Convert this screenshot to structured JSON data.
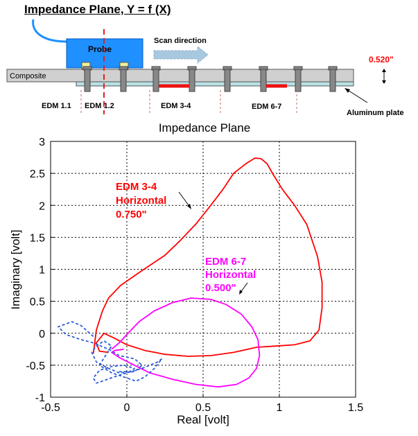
{
  "header": {
    "title": "Impedance Plane, Y = f (X)"
  },
  "diagram": {
    "probe_label": "Probe",
    "scan_label": "Scan direction",
    "composite_label": "Composite",
    "thickness_label": "0.520\"",
    "plate_label": "Aluminum plate",
    "edm_labels": [
      "EDM 1.1",
      "EDM 1.2",
      "EDM 3-4",
      "EDM 6-7"
    ],
    "colors": {
      "probe": "#1e90ff",
      "defect": "#ee1111",
      "scan_arrow": "#a8c8e0",
      "thickness": "#ff0000"
    }
  },
  "chart_data": {
    "type": "line",
    "title": "Impedance Plane",
    "xlabel": "Real [volt]",
    "ylabel": "Imaginary [volt]",
    "xlim": [
      -0.5,
      1.5
    ],
    "ylim": [
      -1,
      3
    ],
    "xticks": [
      "-0.5",
      "0",
      "0.5",
      "1",
      "1.5"
    ],
    "yticks": [
      "-1",
      "-0.5",
      "0",
      "0.5",
      "1",
      "1.5",
      "2",
      "2.5",
      "3"
    ],
    "grid": true,
    "series": [
      {
        "color": "#ff0000",
        "dash": false,
        "x": [
          -0.22,
          -0.2,
          -0.16,
          -0.12,
          -0.04,
          0.1,
          0.25,
          0.35,
          0.45,
          0.55,
          0.63,
          0.7,
          0.78,
          0.84,
          0.88,
          0.92,
          0.96,
          1.02,
          1.1,
          1.18,
          1.25,
          1.28,
          1.28,
          1.26,
          1.2,
          1.1,
          0.98,
          0.85,
          0.7,
          0.55,
          0.4,
          0.25,
          0.12,
          0.0,
          -0.08,
          -0.15,
          -0.2,
          -0.18,
          -0.12
        ],
        "y": [
          -0.32,
          0.05,
          0.35,
          0.55,
          0.75,
          0.98,
          1.22,
          1.45,
          1.7,
          2.0,
          2.25,
          2.5,
          2.65,
          2.74,
          2.73,
          2.65,
          2.48,
          2.25,
          2.0,
          1.7,
          1.2,
          0.8,
          0.4,
          0.05,
          -0.12,
          -0.18,
          -0.2,
          -0.22,
          -0.3,
          -0.35,
          -0.36,
          -0.33,
          -0.27,
          -0.18,
          -0.08,
          0.0,
          -0.15,
          -0.28,
          -0.3
        ]
      },
      {
        "color": "#ff00ff",
        "dash": false,
        "x": [
          -0.1,
          -0.05,
          0.0,
          0.08,
          0.18,
          0.3,
          0.42,
          0.55,
          0.65,
          0.75,
          0.82,
          0.86,
          0.87,
          0.85,
          0.8,
          0.72,
          0.6,
          0.45,
          0.3,
          0.15,
          0.05,
          -0.05,
          -0.1,
          -0.08,
          -0.02
        ],
        "y": [
          -0.25,
          -0.15,
          -0.02,
          0.18,
          0.35,
          0.48,
          0.55,
          0.53,
          0.45,
          0.3,
          0.1,
          -0.1,
          -0.35,
          -0.55,
          -0.7,
          -0.8,
          -0.84,
          -0.8,
          -0.72,
          -0.62,
          -0.5,
          -0.38,
          -0.3,
          -0.27,
          -0.25
        ]
      },
      {
        "color": "#2a5cd8",
        "dash": true,
        "x": [
          -0.22,
          -0.3,
          -0.36,
          -0.45,
          -0.4,
          -0.3,
          -0.22,
          -0.12,
          -0.05,
          0.05,
          0.1,
          0.05,
          -0.05,
          -0.12,
          -0.2,
          -0.23,
          -0.2,
          -0.15,
          -0.1,
          -0.14,
          -0.18,
          -0.1,
          0.0,
          0.06,
          0.12,
          0.18,
          0.23,
          0.2,
          0.1,
          0.0,
          -0.08,
          -0.15,
          -0.2,
          -0.22,
          -0.18,
          -0.1,
          -0.02,
          0.05,
          0.02,
          -0.05
        ],
        "y": [
          -0.05,
          0.12,
          0.18,
          0.1,
          -0.02,
          -0.1,
          -0.15,
          -0.25,
          -0.35,
          -0.4,
          -0.5,
          -0.6,
          -0.62,
          -0.55,
          -0.45,
          -0.3,
          -0.2,
          -0.12,
          -0.2,
          -0.35,
          -0.5,
          -0.62,
          -0.7,
          -0.75,
          -0.68,
          -0.55,
          -0.4,
          -0.45,
          -0.55,
          -0.62,
          -0.68,
          -0.74,
          -0.78,
          -0.7,
          -0.58,
          -0.52,
          -0.5,
          -0.55,
          -0.6,
          -0.6
        ]
      }
    ],
    "annotations": [
      {
        "lines": [
          "EDM 3-4",
          "Horizontal",
          "0.750\""
        ],
        "color": "#ff0000"
      },
      {
        "lines": [
          "EDM 6-7",
          "Horizontal",
          "0.500\""
        ],
        "color": "#ff00ff"
      }
    ]
  }
}
